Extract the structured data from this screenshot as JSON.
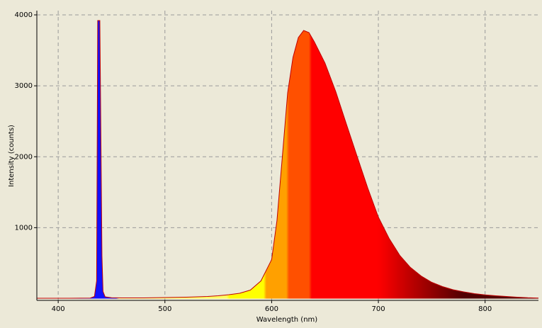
{
  "chart_data": {
    "type": "line",
    "xlabel": "Wavelength (nm)",
    "ylabel": "Intensity (counts)",
    "x": [
      380,
      390,
      400,
      410,
      420,
      430,
      434,
      436,
      437,
      438,
      439,
      440,
      441,
      442,
      444,
      450,
      460,
      470,
      480,
      490,
      500,
      510,
      520,
      530,
      540,
      550,
      560,
      570,
      580,
      590,
      600,
      605,
      610,
      615,
      620,
      625,
      630,
      635,
      640,
      650,
      660,
      670,
      680,
      690,
      700,
      710,
      720,
      730,
      740,
      750,
      760,
      770,
      780,
      790,
      800,
      810,
      820,
      830,
      840,
      850
    ],
    "series": [
      {
        "name": "Intensity",
        "color": "#c00000",
        "values": [
          5,
          5,
          5,
          5,
          6,
          8,
          30,
          250,
          3920,
          3920,
          3920,
          2300,
          600,
          100,
          25,
          12,
          10,
          10,
          10,
          12,
          15,
          18,
          20,
          25,
          30,
          40,
          55,
          75,
          120,
          250,
          550,
          1100,
          2000,
          2900,
          3400,
          3680,
          3780,
          3750,
          3620,
          3320,
          2920,
          2460,
          2010,
          1560,
          1150,
          850,
          610,
          440,
          320,
          230,
          170,
          125,
          95,
          70,
          52,
          40,
          30,
          20,
          12,
          8
        ]
      }
    ],
    "xlim": [
      380,
      850
    ],
    "ylim": [
      -25,
      4060
    ],
    "xticks": [
      400,
      500,
      600,
      700,
      800
    ],
    "yticks": [
      1000,
      2000,
      3000,
      4000
    ],
    "grid": true
  }
}
